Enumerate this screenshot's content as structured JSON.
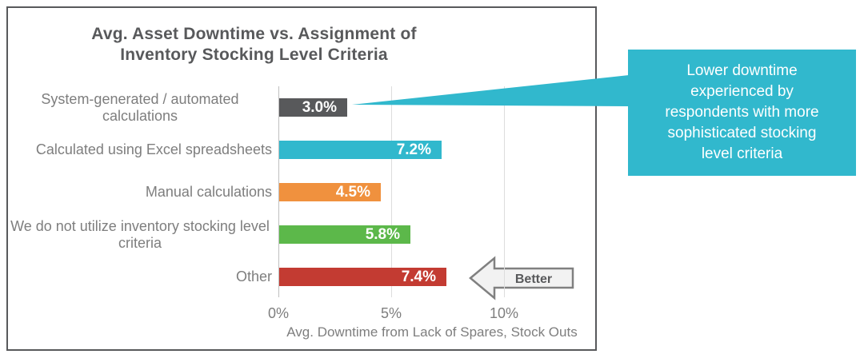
{
  "chart_data": {
    "type": "bar",
    "orientation": "horizontal",
    "title": "Avg. Asset Downtime vs. Assignment of Inventory Stocking Level Criteria",
    "xlabel": "Avg. Downtime from Lack of Spares, Stock Outs",
    "categories": [
      "System-generated / automated calculations",
      "Calculated using Excel spreadsheets",
      "Manual calculations",
      "We do not utilize inventory stocking level criteria",
      "Other"
    ],
    "values": [
      3.0,
      7.2,
      4.5,
      5.8,
      7.4
    ],
    "value_labels": [
      "3.0%",
      "7.2%",
      "4.5%",
      "5.8%",
      "7.4%"
    ],
    "bar_colors": [
      "#58595B",
      "#31B8CD",
      "#F0913E",
      "#5CB84A",
      "#C33B32"
    ],
    "x_ticks": [
      {
        "value": 0,
        "label": "0%"
      },
      {
        "value": 5,
        "label": "5%"
      },
      {
        "value": 10,
        "label": "10%"
      }
    ],
    "xlim": [
      0,
      14
    ],
    "grid": "vertical-light",
    "legend": "none"
  },
  "annotations": {
    "better_arrow_label": "Better",
    "callout_text": "Lower downtime experienced by respondents with more sophisticated stocking level criteria",
    "callout_color": "#31B8CD"
  },
  "colors": {
    "frame_border": "#58595B",
    "title_text": "#58595B",
    "axis_text": "#7E7E7E",
    "axis_line": "#BFBFBF",
    "gridline": "#DDDDDD",
    "arrow_fill": "#F2F2F2",
    "arrow_border": "#808080"
  }
}
